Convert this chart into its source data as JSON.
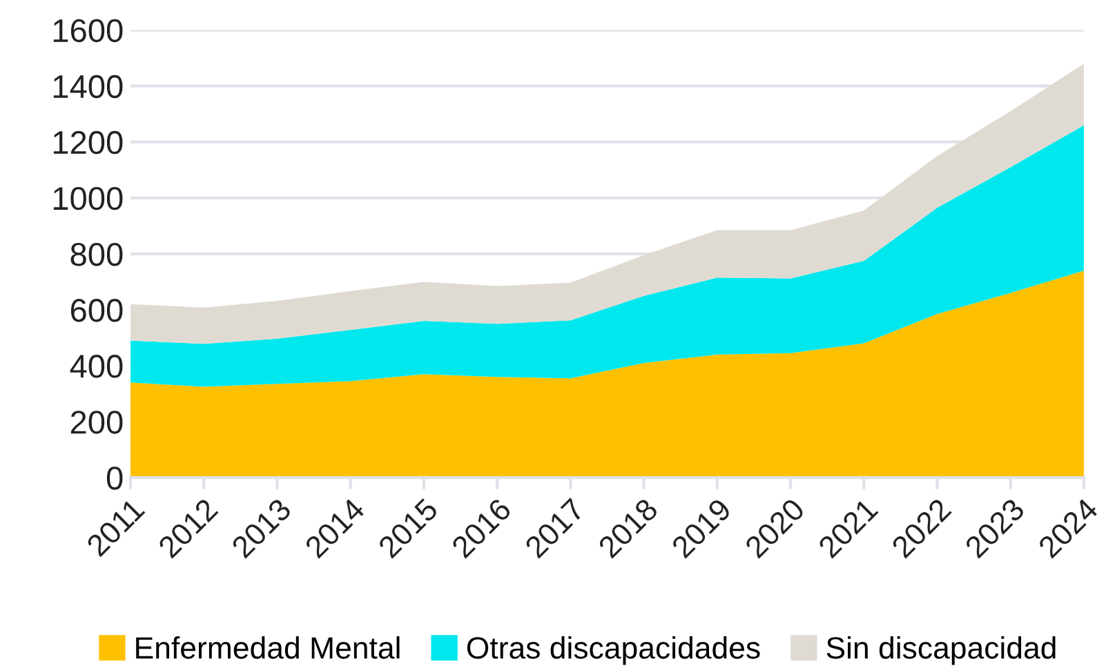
{
  "chart_data": {
    "type": "area",
    "stacked": true,
    "categories": [
      "2011",
      "2012",
      "2013",
      "2014",
      "2015",
      "2016",
      "2017",
      "2018",
      "2019",
      "2020",
      "2021",
      "2022",
      "2023",
      "2024"
    ],
    "series": [
      {
        "name": "Enfermedad Mental",
        "color": "#ffc000",
        "values": [
          340,
          325,
          335,
          345,
          370,
          360,
          355,
          410,
          440,
          445,
          480,
          585,
          660,
          740
        ]
      },
      {
        "name": "Otras discapacidades",
        "color": "#00e8ee",
        "values": [
          150,
          153,
          162,
          183,
          190,
          190,
          207,
          240,
          275,
          267,
          295,
          380,
          450,
          520
        ]
      },
      {
        "name": "Sin discapacidad",
        "color": "#e0dbd2",
        "values": [
          130,
          130,
          135,
          139,
          140,
          135,
          135,
          145,
          170,
          173,
          180,
          185,
          200,
          220
        ]
      }
    ],
    "ylim": [
      0,
      1600
    ],
    "yticks": [
      0,
      200,
      400,
      600,
      800,
      1000,
      1200,
      1400,
      1600
    ],
    "grid": "y",
    "legend": "bottom"
  }
}
